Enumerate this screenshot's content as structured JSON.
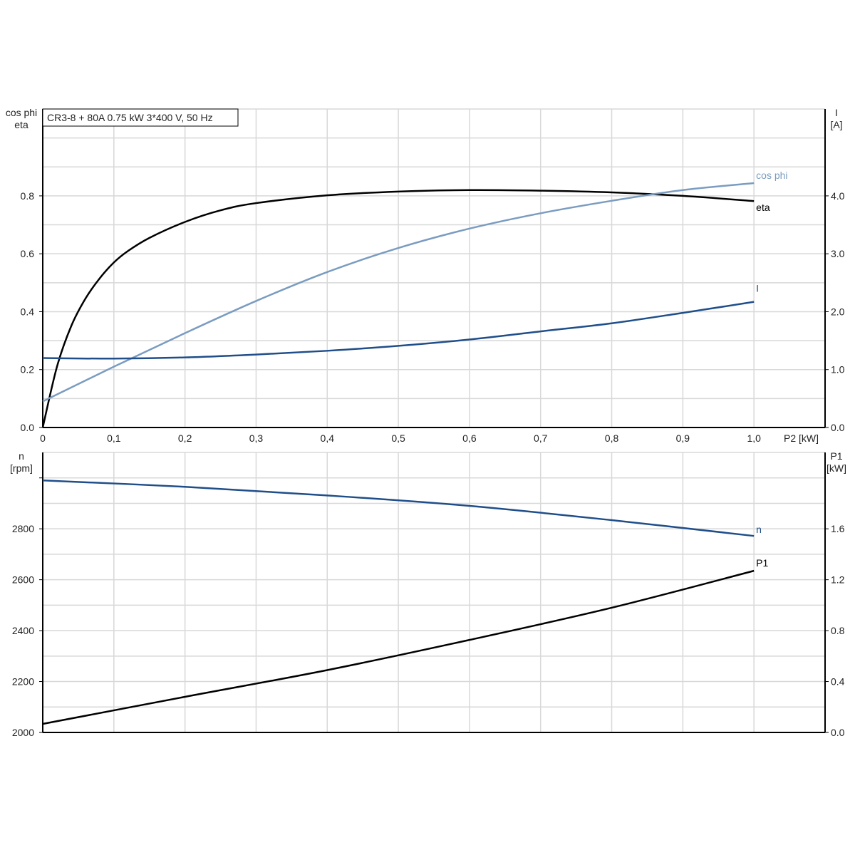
{
  "chart_data": [
    {
      "type": "line",
      "title": "CR3-8 + 80A   0.75 kW   3*400 V, 50 Hz",
      "xlabel": "P2 [kW]",
      "ylabel_left": [
        "cos phi",
        "eta"
      ],
      "ylabel_right": [
        "I",
        "[A]"
      ],
      "xlim": [
        0,
        1.1
      ],
      "ylim_left": [
        0,
        1.1
      ],
      "ylim_right": [
        0,
        5.5
      ],
      "x_ticks": [
        "0",
        "0,1",
        "0,2",
        "0,3",
        "0,4",
        "0,5",
        "0,6",
        "0,7",
        "0,8",
        "0,9",
        "1,0"
      ],
      "y_ticks_left": [
        "0.0",
        "0.2",
        "0.4",
        "0.6",
        "0.8"
      ],
      "y_ticks_right": [
        "0.0",
        "1.0",
        "2.0",
        "3.0",
        "4.0"
      ],
      "grid": true,
      "series": [
        {
          "name": "eta",
          "axis": "left",
          "color": "#000000",
          "x": [
            0,
            0.02,
            0.04,
            0.06,
            0.08,
            0.1,
            0.12,
            0.15,
            0.2,
            0.25,
            0.3,
            0.4,
            0.5,
            0.6,
            0.7,
            0.8,
            0.9,
            1.0
          ],
          "y": [
            0,
            0.21,
            0.35,
            0.445,
            0.515,
            0.57,
            0.61,
            0.655,
            0.71,
            0.75,
            0.775,
            0.802,
            0.815,
            0.82,
            0.818,
            0.812,
            0.8,
            0.782
          ]
        },
        {
          "name": "cos phi",
          "axis": "left",
          "color": "#7a9cc0",
          "x": [
            0,
            0.1,
            0.2,
            0.3,
            0.4,
            0.5,
            0.6,
            0.7,
            0.8,
            0.9,
            1.0
          ],
          "y": [
            0.09,
            0.21,
            0.326,
            0.437,
            0.537,
            0.62,
            0.687,
            0.74,
            0.783,
            0.82,
            0.844
          ]
        },
        {
          "name": "I",
          "axis": "right",
          "color": "#1f4e8a",
          "x": [
            0,
            0.1,
            0.2,
            0.3,
            0.4,
            0.5,
            0.6,
            0.7,
            0.8,
            0.9,
            1.0
          ],
          "y": [
            1.2,
            1.19,
            1.21,
            1.26,
            1.325,
            1.41,
            1.52,
            1.66,
            1.8,
            1.98,
            2.17
          ]
        }
      ]
    },
    {
      "type": "line",
      "xlim": [
        0,
        1.1
      ],
      "ylabel_left": [
        "n",
        "[rpm]"
      ],
      "ylabel_right": [
        "P1",
        "[kW]"
      ],
      "ylim_left": [
        2000,
        3100
      ],
      "ylim_right": [
        0,
        2.2
      ],
      "y_ticks_left": [
        "2000",
        "2200",
        "2400",
        "2600",
        "2800"
      ],
      "y_ticks_right": [
        "0.0",
        "0.4",
        "0.8",
        "1.2",
        "1.6"
      ],
      "grid": true,
      "series": [
        {
          "name": "n",
          "axis": "left",
          "color": "#1f4e8a",
          "x": [
            0,
            0.2,
            0.4,
            0.6,
            0.8,
            1.0
          ],
          "y": [
            2990,
            2965,
            2931,
            2890,
            2834,
            2772
          ]
        },
        {
          "name": "P1",
          "axis": "right",
          "color": "#000000",
          "x": [
            0,
            0.2,
            0.4,
            0.6,
            0.8,
            1.0
          ],
          "y": [
            0.067,
            0.28,
            0.49,
            0.727,
            0.98,
            1.27
          ]
        }
      ]
    }
  ]
}
